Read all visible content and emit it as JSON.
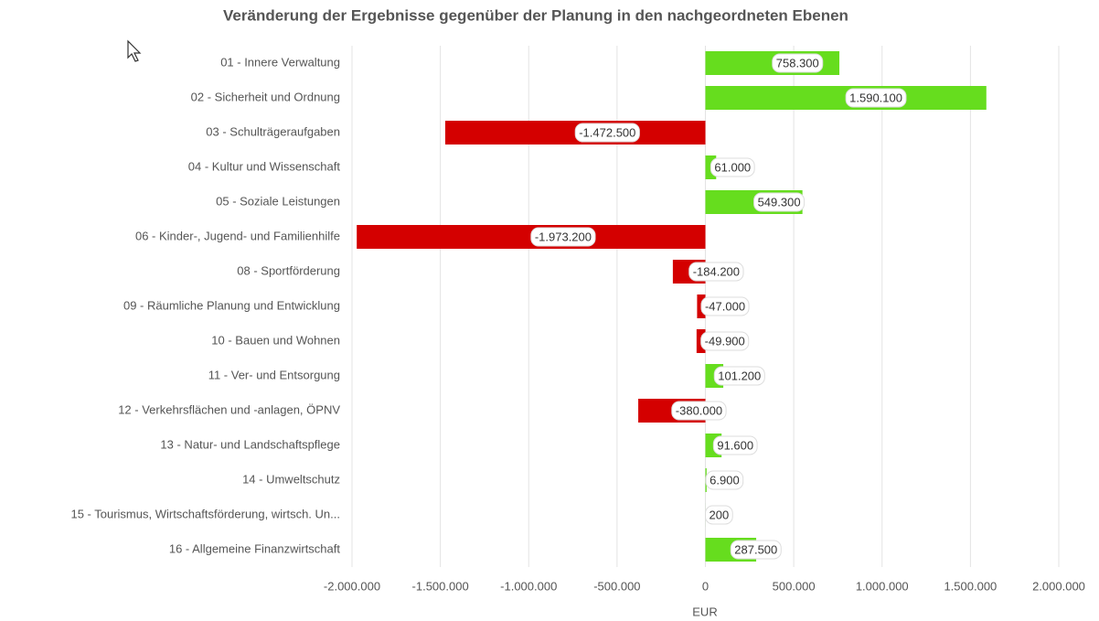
{
  "chart_data": {
    "type": "bar",
    "orientation": "horizontal",
    "title": "Veränderung der Ergebnisse gegenüber der Planung in den nachgeordneten Ebenen",
    "categories": [
      "01 - Innere Verwaltung",
      "02 - Sicherheit und Ordnung",
      "03 - Schulträgeraufgaben",
      "04 - Kultur und Wissenschaft",
      "05 - Soziale Leistungen",
      "06 - Kinder-, Jugend- und Familienhilfe",
      "08 - Sportförderung",
      "09 - Räumliche Planung und Entwicklung",
      "10 - Bauen und Wohnen",
      "11 - Ver- und Entsorgung",
      "12 - Verkehrsflächen und -anlagen, ÖPNV",
      "13 - Natur- und Landschaftspflege",
      "14 - Umweltschutz",
      "15 - Tourismus, Wirtschaftsförderung, wirtsch. Un...",
      "16 - Allgemeine Finanzwirtschaft"
    ],
    "values": [
      758300,
      1590100,
      -1472500,
      61000,
      549300,
      -1973200,
      -184200,
      -47000,
      -49900,
      101200,
      -380000,
      91600,
      6900,
      200,
      287500
    ],
    "value_labels": [
      "758.300",
      "1.590.100",
      "-1.472.500",
      "61.000",
      "549.300",
      "-1.973.200",
      "-184.200",
      "-47.000",
      "-49.900",
      "101.200",
      "-380.000",
      "91.600",
      "6.900",
      "200",
      "287.500"
    ],
    "positive_color": "#66dd1e",
    "negative_color": "#d40000",
    "xlabel": "EUR",
    "xlim": [
      -2000000,
      2000000
    ],
    "xticks": [
      {
        "value": -2000000,
        "label": "-2.000.000"
      },
      {
        "value": -1500000,
        "label": "-1.500.000"
      },
      {
        "value": -1000000,
        "label": "-1.000.000"
      },
      {
        "value": -500000,
        "label": "-500.000"
      },
      0,
      {
        "value": 500000,
        "label": "500.000"
      },
      {
        "value": 1000000,
        "label": "1.000.000"
      },
      {
        "value": 1500000,
        "label": "1.500.000"
      },
      {
        "value": 2000000,
        "label": "2.000.000"
      }
    ],
    "grid": true
  }
}
